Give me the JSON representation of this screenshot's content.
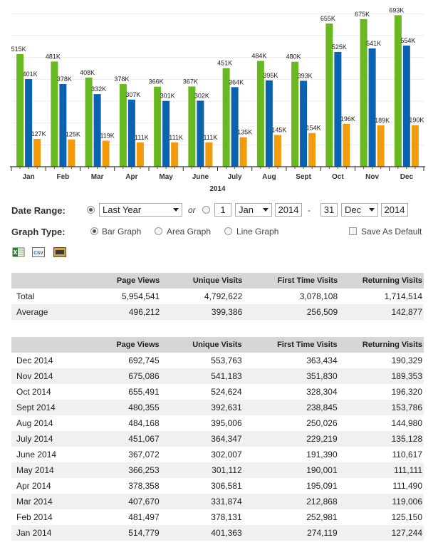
{
  "chart_data": {
    "type": "bar",
    "categories": [
      "Jan",
      "Feb",
      "Mar",
      "Apr",
      "May",
      "June",
      "July",
      "Aug",
      "Sept",
      "Oct",
      "Nov",
      "Dec"
    ],
    "xlabel": "2014",
    "series": [
      {
        "values": [
          515,
          481,
          408,
          378,
          366,
          367,
          451,
          484,
          480,
          655,
          675,
          693
        ],
        "labels": [
          "515K",
          "481K",
          "408K",
          "378K",
          "366K",
          "367K",
          "451K",
          "484K",
          "480K",
          "655K",
          "675K",
          "693K"
        ],
        "color": "#6ab820"
      },
      {
        "values": [
          401,
          378,
          332,
          307,
          301,
          302,
          364,
          395,
          393,
          525,
          541,
          554
        ],
        "labels": [
          "401K",
          "378K",
          "332K",
          "307K",
          "301K",
          "302K",
          "364K",
          "395K",
          "393K",
          "525K",
          "541K",
          "554K"
        ],
        "color": "#0b63b0"
      },
      {
        "values": [
          127,
          125,
          119,
          111,
          111,
          111,
          135,
          145,
          154,
          196,
          189,
          190
        ],
        "labels": [
          "127K",
          "125K",
          "119K",
          "111K",
          "111K",
          "111K",
          "135K",
          "145K",
          "154K",
          "196K",
          "189K",
          "190K"
        ],
        "color": "#f19c0c"
      }
    ],
    "ylim": [
      0,
      730
    ],
    "grid": true
  },
  "form": {
    "date_range_label": "Date Range:",
    "range_select": "Last Year",
    "or_text": "or",
    "from_day": "1",
    "from_month": "Jan",
    "from_year": "2014",
    "dash": "-",
    "to_day": "31",
    "to_month": "Dec",
    "to_year": "2014",
    "graph_type_label": "Graph Type:",
    "bar_label": "Bar Graph",
    "area_label": "Area Graph",
    "line_label": "Line Graph",
    "save_default_label": "Save As Default"
  },
  "icons": {
    "excel": "excel-icon",
    "csv": "csv-icon",
    "pdf": "pdf-icon",
    "csv_text": "CSV"
  },
  "summary": {
    "headers": [
      "",
      "Page Views",
      "Unique Visits",
      "First Time Visits",
      "Returning Visits"
    ],
    "rows": [
      [
        "Total",
        "5,954,541",
        "4,792,622",
        "3,078,108",
        "1,714,514"
      ],
      [
        "Average",
        "496,212",
        "399,386",
        "256,509",
        "142,877"
      ]
    ]
  },
  "monthly": {
    "headers": [
      "",
      "Page Views",
      "Unique Visits",
      "First Time Visits",
      "Returning Visits"
    ],
    "rows": [
      [
        "Dec 2014",
        "692,745",
        "553,763",
        "363,434",
        "190,329"
      ],
      [
        "Nov 2014",
        "675,086",
        "541,183",
        "351,830",
        "189,353"
      ],
      [
        "Oct 2014",
        "655,491",
        "524,624",
        "328,304",
        "196,320"
      ],
      [
        "Sept 2014",
        "480,355",
        "392,631",
        "238,845",
        "153,786"
      ],
      [
        "Aug 2014",
        "484,168",
        "395,006",
        "250,026",
        "144,980"
      ],
      [
        "July 2014",
        "451,067",
        "364,347",
        "229,219",
        "135,128"
      ],
      [
        "June 2014",
        "367,072",
        "302,007",
        "191,390",
        "110,617"
      ],
      [
        "May 2014",
        "366,253",
        "301,112",
        "190,001",
        "111,111"
      ],
      [
        "Apr 2014",
        "378,358",
        "306,581",
        "195,091",
        "111,490"
      ],
      [
        "Mar 2014",
        "407,670",
        "331,874",
        "212,868",
        "119,006"
      ],
      [
        "Feb 2014",
        "481,497",
        "378,131",
        "252,981",
        "125,150"
      ],
      [
        "Jan 2014",
        "514,779",
        "401,363",
        "274,119",
        "127,244"
      ]
    ]
  }
}
